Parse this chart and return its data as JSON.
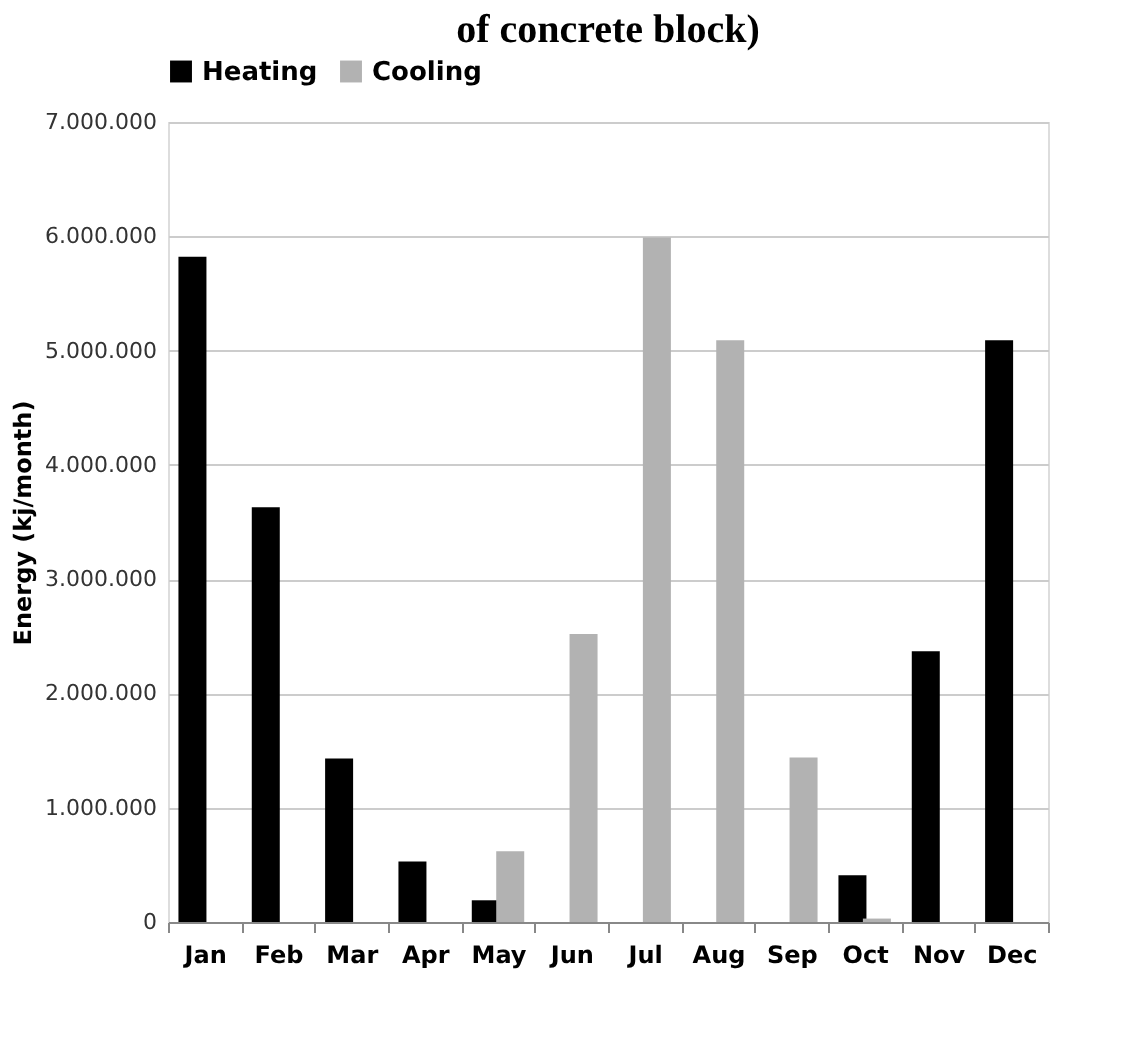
{
  "chart_data": {
    "type": "bar",
    "title": "of concrete block)",
    "ylabel": "Energy (kj/month)",
    "categories": [
      "Jan",
      "Feb",
      "Mar",
      "Apr",
      "May",
      "Jun",
      "Jul",
      "Aug",
      "Sep",
      "Oct",
      "Nov",
      "Dec"
    ],
    "series": [
      {
        "name": "Heating",
        "color": "#000000",
        "values": [
          5820000,
          3630000,
          1430000,
          530000,
          190000,
          0,
          0,
          0,
          0,
          410000,
          2370000,
          5090000
        ]
      },
      {
        "name": "Cooling",
        "color": "#b2b2b2",
        "values": [
          0,
          0,
          0,
          0,
          620000,
          2520000,
          5990000,
          5090000,
          1440000,
          30000,
          0,
          0
        ]
      }
    ],
    "ylim": [
      0,
      7000000
    ],
    "yticks": [
      0,
      {
        "value": 1000000,
        "label": "1.000.000"
      },
      {
        "value": 2000000,
        "label": "2.000.000"
      },
      {
        "value": 3000000,
        "label": "3.000.000"
      },
      {
        "value": 4000000,
        "label": "4.000.000"
      },
      {
        "value": 5000000,
        "label": "5.000.000"
      },
      {
        "value": 6000000,
        "label": "6.000.000"
      },
      {
        "value": 7000000,
        "label": "7.000.000"
      }
    ],
    "grid": "y",
    "legend": "top"
  }
}
